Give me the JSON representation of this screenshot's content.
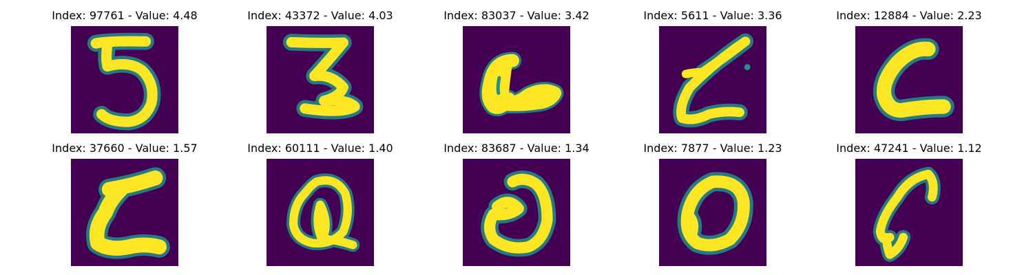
{
  "colors": {
    "background": "#440154",
    "mid": "#21918c",
    "stroke": "#fde725"
  },
  "panels": [
    {
      "title": "Index: 97761 - Value: 4.48",
      "glyph": "5"
    },
    {
      "title": "Index: 43372 - Value: 4.03",
      "glyph": "Z"
    },
    {
      "title": "Index: 83037 - Value: 3.42",
      "glyph": "a"
    },
    {
      "title": "Index: 5611 - Value: 3.36",
      "glyph": "Z"
    },
    {
      "title": "Index: 12884 - Value: 2.23",
      "glyph": "C"
    },
    {
      "title": "Index: 37660 - Value: 1.57",
      "glyph": "C"
    },
    {
      "title": "Index: 60111 - Value: 1.40",
      "glyph": "Q"
    },
    {
      "title": "Index: 83687 - Value: 1.34",
      "glyph": "O"
    },
    {
      "title": "Index: 7877 - Value: 1.23",
      "glyph": "O"
    },
    {
      "title": "Index: 47241 - Value: 1.12",
      "glyph": "C"
    }
  ]
}
